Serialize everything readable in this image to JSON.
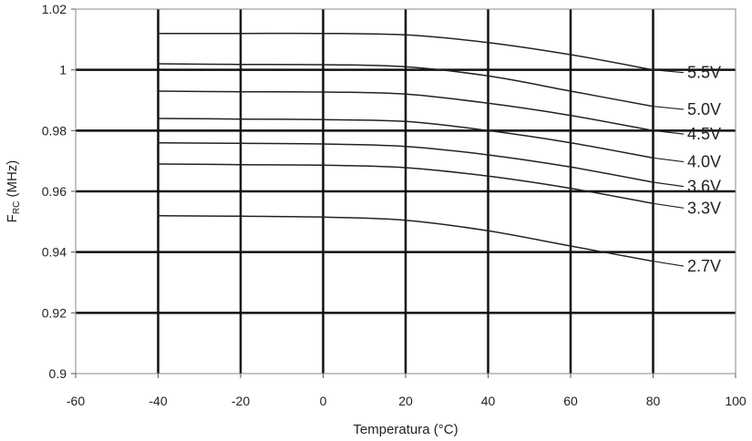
{
  "chart_data": {
    "type": "line",
    "title": "",
    "xlabel": "Temperatura (°C)",
    "ylabel": "FRC (MHz)",
    "ylabel_main": "F",
    "ylabel_sub": "RC",
    "ylabel_rest": " (MHz)",
    "xlim": [
      -60,
      100
    ],
    "ylim": [
      0.9,
      1.02
    ],
    "xticks": [
      "-60",
      "-40",
      "-20",
      "0",
      "20",
      "40",
      "60",
      "80",
      "100"
    ],
    "yticks": [
      "0.9",
      "0.92",
      "0.94",
      "0.96",
      "0.98",
      "1",
      "1.02"
    ],
    "grid": true,
    "legend": "inline-right",
    "series": [
      {
        "name": "5.5V",
        "x": [
          -40,
          -20,
          0,
          20,
          40,
          60,
          80
        ],
        "values": [
          1.012,
          1.012,
          1.012,
          1.0115,
          1.009,
          1.005,
          1.0
        ]
      },
      {
        "name": "5.0V",
        "x": [
          -40,
          -20,
          0,
          20,
          40,
          60,
          80
        ],
        "values": [
          1.002,
          1.0018,
          1.0017,
          1.001,
          0.998,
          0.993,
          0.988
        ]
      },
      {
        "name": "4.5V",
        "x": [
          -40,
          -20,
          0,
          20,
          40,
          60,
          80
        ],
        "values": [
          0.993,
          0.9928,
          0.9927,
          0.992,
          0.989,
          0.985,
          0.98
        ]
      },
      {
        "name": "4.0V",
        "x": [
          -40,
          -20,
          0,
          20,
          40,
          60,
          80
        ],
        "values": [
          0.984,
          0.9838,
          0.9836,
          0.983,
          0.98,
          0.976,
          0.971
        ]
      },
      {
        "name": "3.6V",
        "x": [
          -40,
          -20,
          0,
          20,
          40,
          60,
          80
        ],
        "values": [
          0.976,
          0.9758,
          0.9756,
          0.9748,
          0.972,
          0.968,
          0.963
        ]
      },
      {
        "name": "3.3V",
        "x": [
          -40,
          -20,
          0,
          20,
          40,
          60,
          80
        ],
        "values": [
          0.969,
          0.9688,
          0.9686,
          0.9678,
          0.965,
          0.961,
          0.956
        ]
      },
      {
        "name": "2.7V",
        "x": [
          -40,
          -20,
          0,
          20,
          40,
          60,
          80
        ],
        "values": [
          0.952,
          0.9518,
          0.9515,
          0.9505,
          0.947,
          0.942,
          0.937
        ]
      }
    ]
  }
}
